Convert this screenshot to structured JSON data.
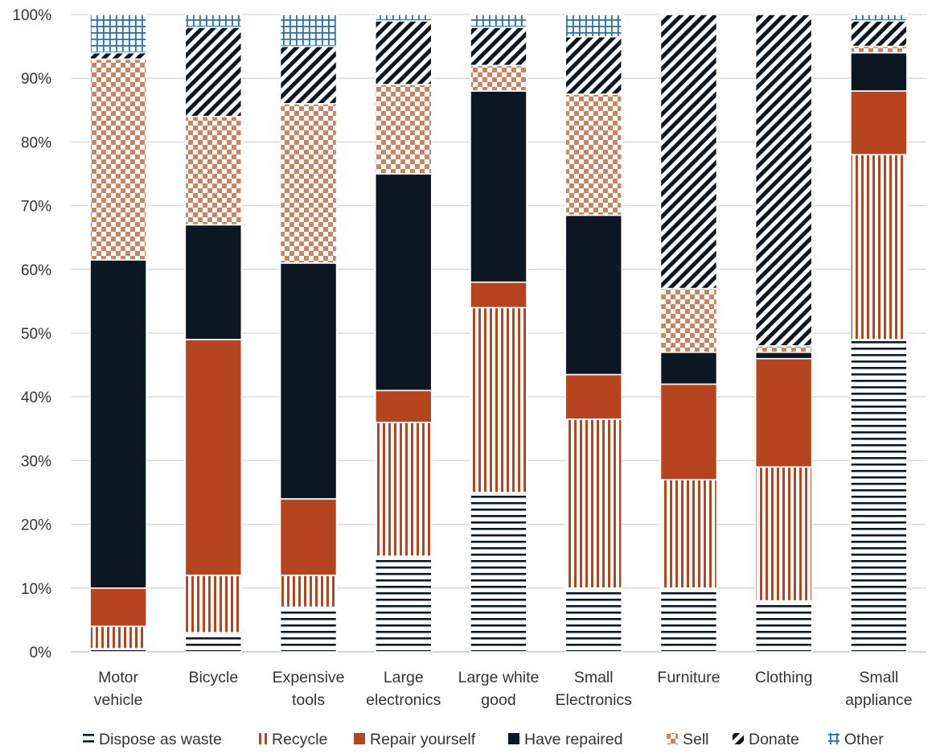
{
  "chart_data": {
    "type": "bar",
    "stacked": "percent",
    "categories": [
      [
        "Motor",
        "vehicle"
      ],
      [
        "Bicycle"
      ],
      [
        "Expensive",
        "tools"
      ],
      [
        "Large",
        "electronics"
      ],
      [
        "Large white",
        "good"
      ],
      [
        "Small",
        "Electronics"
      ],
      [
        "Furniture"
      ],
      [
        "Clothing"
      ],
      [
        "Small",
        "appliance"
      ]
    ],
    "ylim": [
      0,
      100
    ],
    "yticks": [
      "0%",
      "10%",
      "20%",
      "30%",
      "40%",
      "50%",
      "60%",
      "70%",
      "80%",
      "90%",
      "100%"
    ],
    "grid": true,
    "legend_position": "bottom",
    "series": [
      {
        "name": "Dispose as waste",
        "color": "#0a1a24",
        "pattern": "horizontal-stripes",
        "values": [
          0.5,
          3,
          7,
          15,
          25,
          10,
          10,
          8,
          49
        ]
      },
      {
        "name": "Recycle",
        "color": "#b5441f",
        "pattern": "vertical-stripes",
        "values": [
          3.5,
          9,
          5,
          21,
          29,
          26.5,
          17,
          21,
          29
        ]
      },
      {
        "name": "Repair yourself",
        "color": "#b5441f",
        "pattern": "solid",
        "values": [
          6,
          37,
          12,
          5,
          4,
          7,
          15,
          17,
          10
        ]
      },
      {
        "name": "Have repaired",
        "color": "#0b1722",
        "pattern": "solid",
        "values": [
          51.5,
          18,
          37,
          34,
          30,
          25,
          5,
          1,
          6
        ]
      },
      {
        "name": "Sell",
        "color": "#c9855f",
        "pattern": "checkerboard",
        "values": [
          31.5,
          17,
          25,
          14,
          4,
          19,
          10,
          1,
          1
        ]
      },
      {
        "name": "Donate",
        "color": "#0b1722",
        "pattern": "diagonal-stripes",
        "values": [
          1,
          14,
          9,
          10,
          6,
          9,
          43,
          52,
          4
        ]
      },
      {
        "name": "Other",
        "color": "#2e6fa6",
        "pattern": "grid",
        "values": [
          6,
          2,
          5,
          1,
          2,
          3.5,
          0,
          0,
          1
        ]
      }
    ]
  }
}
